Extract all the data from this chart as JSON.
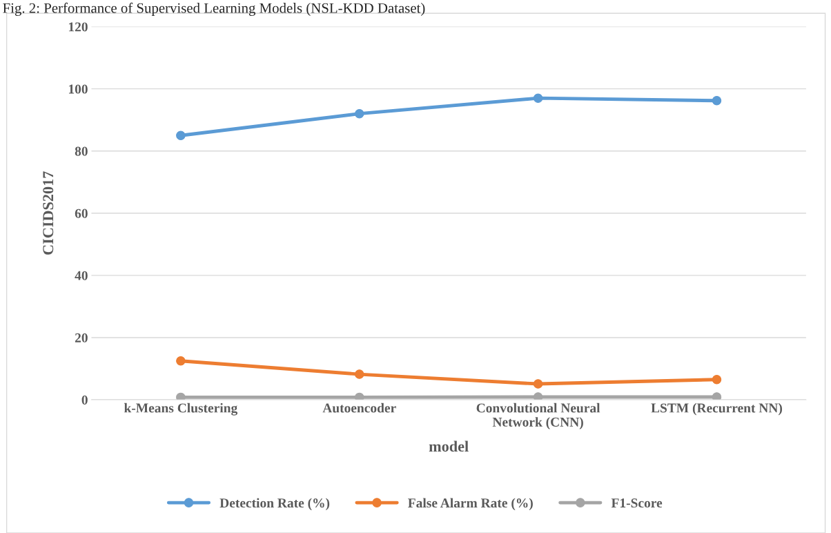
{
  "chart_data": {
    "type": "line",
    "title": "Fig. 2: Performance of Supervised Learning Models (NSL-KDD Dataset)",
    "xlabel": "model",
    "ylabel": "CICIDS2017",
    "categories": [
      "k-Means Clustering",
      "Autoencoder",
      "Convolutional Neural\nNetwork (CNN)",
      "LSTM (Recurrent NN)"
    ],
    "series": [
      {
        "name": "Detection Rate (%)",
        "color": "#5b9bd5",
        "values": [
          85,
          92,
          97,
          96.2
        ]
      },
      {
        "name": "False Alarm Rate (%)",
        "color": "#ed7d31",
        "values": [
          12.5,
          8.2,
          5.1,
          6.5
        ]
      },
      {
        "name": "F1-Score",
        "color": "#a5a5a5",
        "values": [
          0.8,
          0.8,
          0.9,
          0.9
        ]
      }
    ],
    "ylim": [
      0,
      120
    ],
    "yticks": [
      0,
      20,
      40,
      60,
      80,
      100,
      120
    ],
    "grid": "y",
    "legend": "bottom",
    "marker": "circle",
    "line_style": "solid"
  }
}
